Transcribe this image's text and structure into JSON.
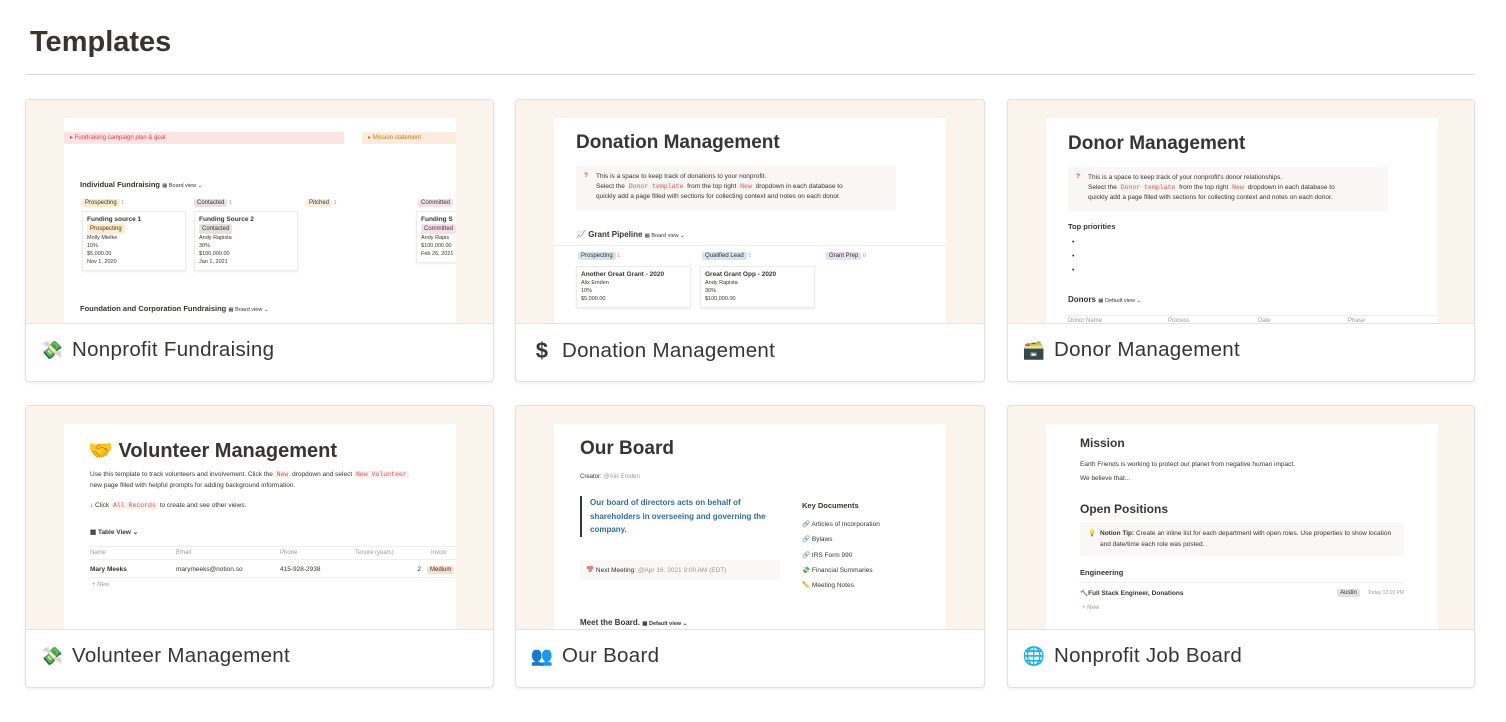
{
  "title": "Templates",
  "templates": [
    {
      "name": "Nonprofit Fundraising",
      "icon": "💸",
      "preview": {
        "toggle1": "Fundraising campaign plan & goal",
        "toggle2": "Mission statement",
        "section1": "Individual Fundraising",
        "view": "Board view",
        "columns": [
          {
            "label": "Prospecting",
            "count": "1"
          },
          {
            "label": "Contacted",
            "count": "1"
          },
          {
            "label": "Pitched",
            "count": "1"
          },
          {
            "label": "Committed",
            "count": ""
          }
        ],
        "cards": [
          {
            "title": "Funding source 1",
            "tag": "Prospecting",
            "person": "Molly Mielke",
            "pct": "10%",
            "amount": "$5,000.00",
            "date": "Nov 1, 2020"
          },
          {
            "title": "Funding Source 2",
            "tag": "Contacted",
            "person": "Andy Rapista",
            "pct": "30%",
            "amount": "$100,000.00",
            "date": "Jan 1, 2021"
          },
          {
            "title": "Funding S",
            "tag": "Committed",
            "person": "Andy Rapis",
            "pct": "",
            "amount": "$100,000.00",
            "date": "Feb 26, 2021"
          }
        ],
        "section2": "Foundation and Corporation Fundraising",
        "view2": "Board view"
      }
    },
    {
      "name": "Donation Management",
      "icon": "$",
      "preview": {
        "title": "Donation Management",
        "line1": "This is a space to keep track of donations to your nonprofit.",
        "line2a": "Select the",
        "code1": "Donor template",
        "line2b": "from the top right",
        "code2": "New",
        "line2c": "dropdown in each database to",
        "line3": "quickly add a page filled with sections for collecting context and notes on each donor.",
        "section": "Grant Pipeline",
        "view": "Board view",
        "columns": [
          {
            "label": "Prospecting",
            "count": "1"
          },
          {
            "label": "Qualified Lead",
            "count": "1"
          },
          {
            "label": "Grant Prep",
            "count": "0"
          }
        ],
        "cards": [
          {
            "title": "Another Great Grant - 2020",
            "person": "Alix Emden",
            "pct": "10%",
            "amount": "$5,000.00"
          },
          {
            "title": "Great Grant Opp - 2020",
            "person": "Andy Rapista",
            "pct": "30%",
            "amount": "$100,000.00"
          }
        ]
      }
    },
    {
      "name": "Donor Management",
      "icon": "🗃️",
      "preview": {
        "title": "Donor Management",
        "line1": "This is a space to keep track of your nonprofit's donor relationships.",
        "line2a": "Select the",
        "code1": "Donor template",
        "line2b": "from the top right",
        "code2": "New",
        "line2c": "dropdown in each database to",
        "line3": "quickly add a page filled with sections for collecting context and notes on each donor.",
        "priorities": "Top priorities",
        "section": "Donors",
        "view": "Default view",
        "columns": [
          "Donor Name",
          "Process",
          "Date",
          "Phase"
        ]
      }
    },
    {
      "name": "Volunteer Management",
      "icon": "💸",
      "preview": {
        "icon": "🤝",
        "title": "Volunteer Management",
        "desc1a": "Use this template to track volunteers and involvement. Click the",
        "code1": "New",
        "desc1b": "dropdown and select",
        "code2": "New Volunteer",
        "desc2": "new page filled with helpful prompts for adding background information.",
        "click": "↓ Click",
        "code3": "All Records",
        "clickb": "to create and see other views.",
        "view": "Table View",
        "columns": [
          "Name",
          "Email",
          "Phone",
          "Tenure (years)",
          "Involv"
        ],
        "row": [
          "Mary Meeks",
          "marymeeks@notion.so",
          "415-928-2938",
          "2",
          "Medium"
        ],
        "new": "New"
      }
    },
    {
      "name": "Our Board",
      "icon": "👥",
      "preview": {
        "title": "Our Board",
        "creator": "Creator:",
        "creator_name": "@Alix Emden",
        "quote": "Our board of directors acts on behalf of shareholders in overseeing and governing the company.",
        "meeting": "Next Meeting:",
        "meeting_date": "@Apr 16, 2021 9:00 AM (EDT)",
        "docs_title": "Key Documents",
        "docs": [
          "Articles of Incorporation",
          "Bylaws",
          "IRS Form 990",
          "Financial Summaries",
          "Meeting Notes"
        ],
        "section": "Meet the Board.",
        "view": "Default view"
      }
    },
    {
      "name": "Nonprofit Job Board",
      "icon": "🌐",
      "preview": {
        "mission": "Mission",
        "mission1": "Earth Friends is working to protect our planet from negative human impact.",
        "mission2": "We believe that...",
        "open": "Open Positions",
        "tip_label": "Notion Tip:",
        "tip": "Create an inline list for each department with open roles. Use properties to show location and date/time each role was posted.",
        "dept": "Engineering",
        "job": "Full Stack Engineer, Donations",
        "loc": "Austin",
        "time": "Today 12:10 PM",
        "new": "New"
      }
    }
  ]
}
